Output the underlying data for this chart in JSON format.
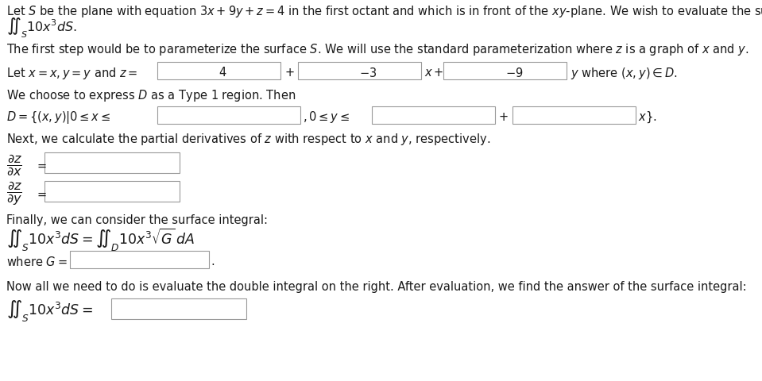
{
  "bg_color": "#ffffff",
  "box_color": "white",
  "box_edge_color": "#999999",
  "text_color": "#1a1a1a",
  "font_size": 10.5,
  "line1a": "Let $S$ be the plane with equation $3x + 9y + z = 4$ in the first octant and which is in front of the $xy$-plane. We wish to evaluate the surface integral",
  "line1b": "$\\iint_S 10x^3dS$.",
  "line2": "The first step would be to parameterize the surface $S$. We will use the standard parameterization where $z$ is a graph of $x$ and $y$.",
  "line3_text": "Let $x = x, y = y$ and $z = $",
  "line3_b1": "4",
  "line3_b2": "$-3$",
  "line3_b3": "$-9$",
  "line4": "We choose to express $D$ as a Type 1 region. Then",
  "line5_text": "$D = \\{(x, y)|0 \\leq x \\leq$",
  "line6": "Next, we calculate the partial derivatives of $z$ with respect to $x$ and $y$, respectively.",
  "line7": "Finally, we can consider the surface integral:",
  "line8": "$\\iint_S 10x^3dS = \\iint_D 10x^3\\sqrt{G}\\,dA$",
  "line9_text": "where $G = $",
  "line10": "Now all we need to do is evaluate the double integral on the right. After evaluation, we find the answer of the surface integral:",
  "line11_text": "$\\iint_S 10x^3dS = $"
}
